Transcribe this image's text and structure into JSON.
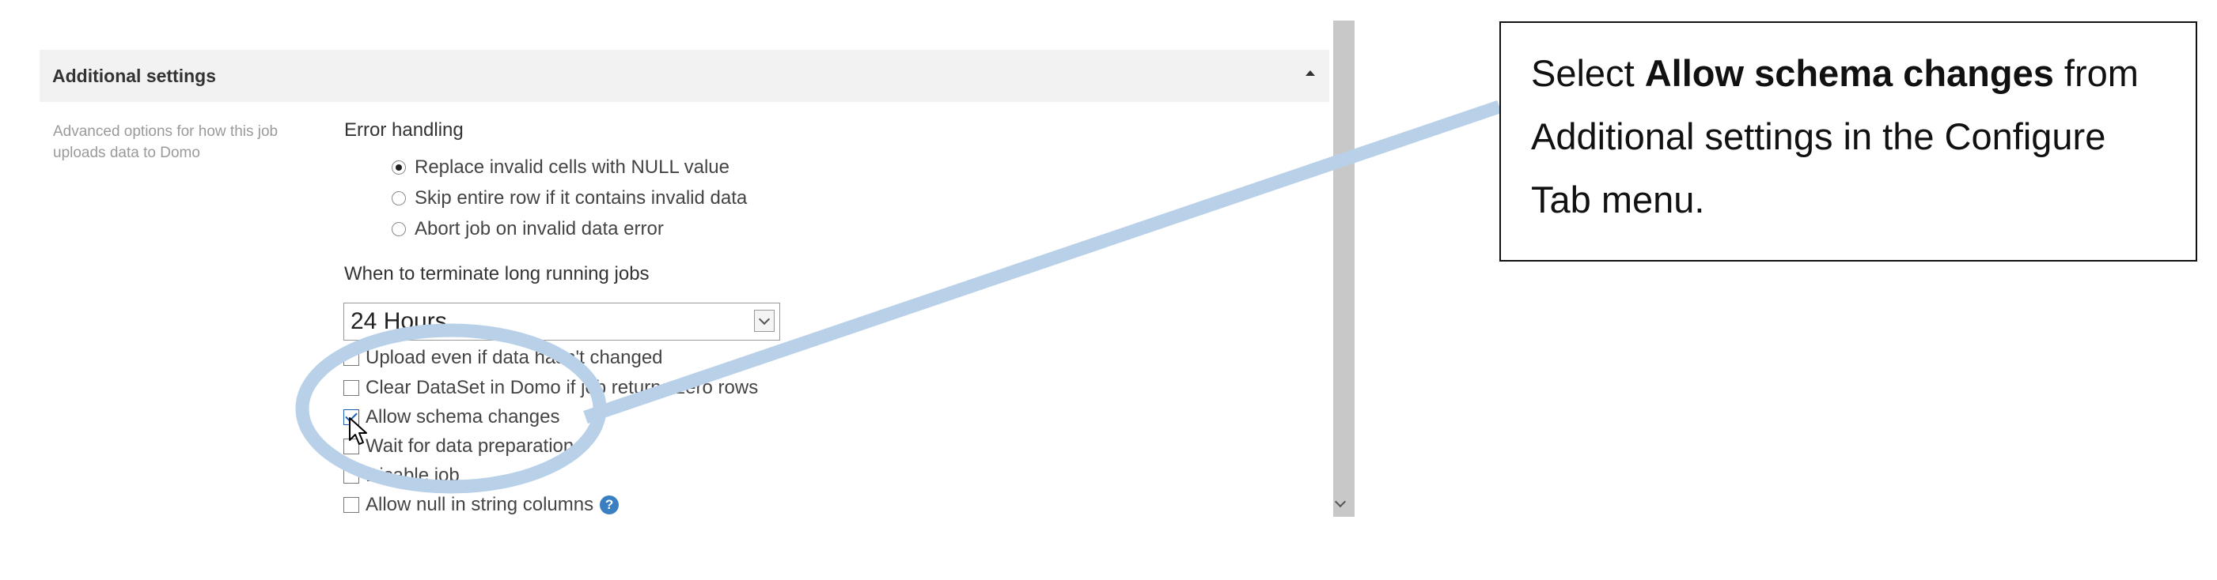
{
  "panel": {
    "title": "Additional settings",
    "description": "Advanced options for how this job uploads data to Domo"
  },
  "error_handling": {
    "label": "Error handling",
    "options": [
      {
        "label": "Replace invalid cells with NULL value",
        "selected": true
      },
      {
        "label": "Skip entire row if it contains invalid data",
        "selected": false
      },
      {
        "label": "Abort job on invalid data error",
        "selected": false
      }
    ]
  },
  "terminate": {
    "label": "When to terminate long running jobs",
    "selected_value": "24 Hours"
  },
  "checkboxes": [
    {
      "label": "Upload even if data hasn't changed",
      "checked": false
    },
    {
      "label": "Clear DataSet in Domo if job returns zero rows",
      "checked": false
    },
    {
      "label": "Allow schema changes",
      "checked": true
    },
    {
      "label": "Wait for data preparation",
      "checked": false
    },
    {
      "label": "Disable job",
      "checked": false
    },
    {
      "label": "Allow null in string columns",
      "checked": false,
      "help": "?"
    }
  ],
  "callout": {
    "prefix": "Select ",
    "bold": "Allow schema changes",
    "suffix": " from Additional settings in the Configure Tab menu."
  },
  "colors": {
    "highlight": "#b8d0e8",
    "header_bg": "#f2f2f2",
    "scrollbar": "#c8c8c8",
    "help_icon": "#3a7fc1"
  }
}
